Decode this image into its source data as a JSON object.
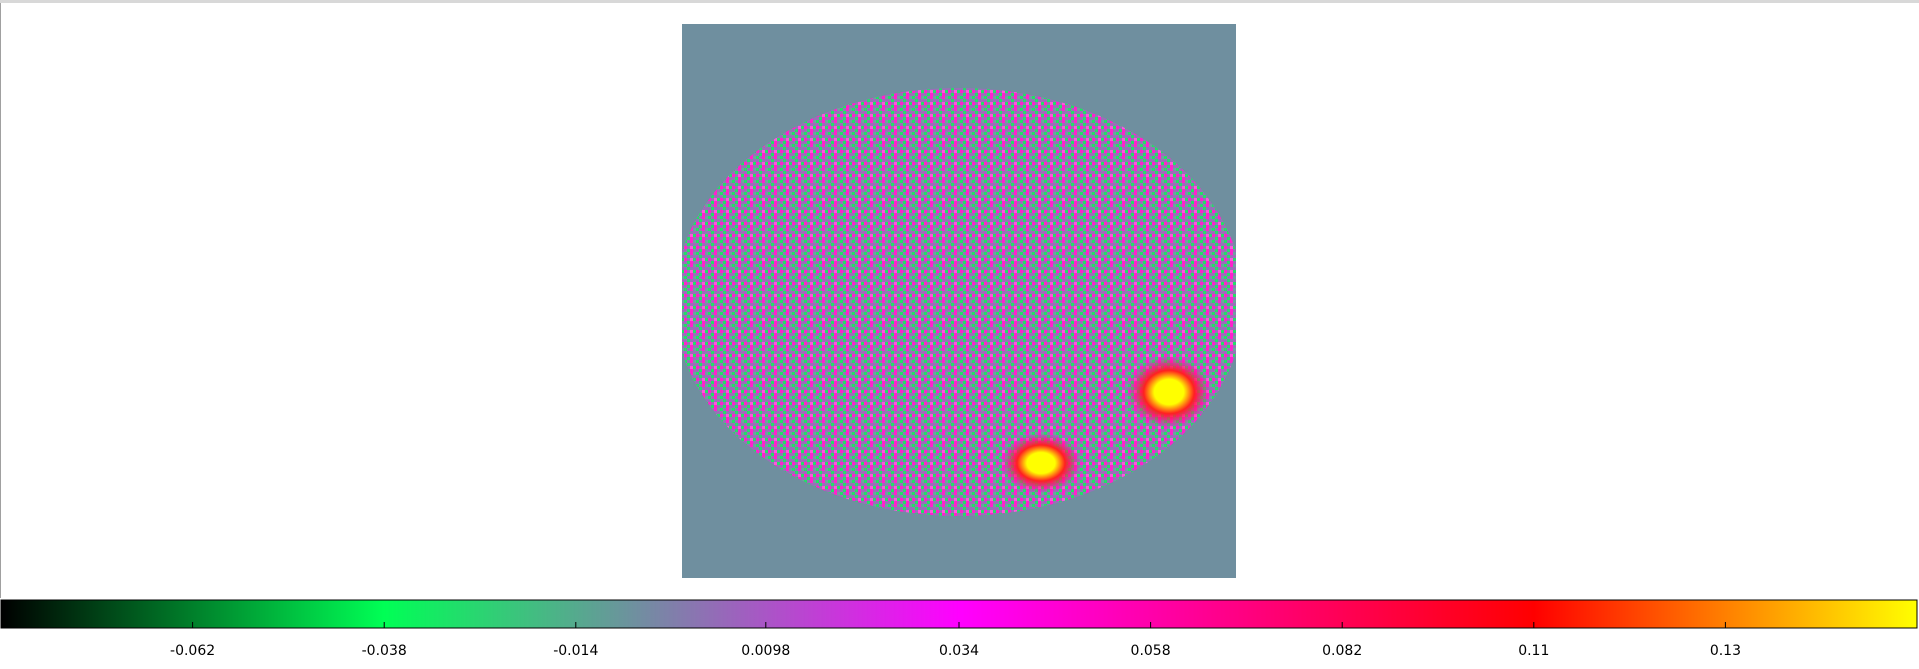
{
  "chart_data": {
    "type": "colorbar",
    "clim": [
      -0.086,
      0.154
    ],
    "xticks": [
      -0.062,
      -0.038,
      -0.014,
      0.0098,
      0.034,
      0.058,
      0.082,
      {
        "value": 0.106,
        "label": "0.11"
      },
      0.13
    ]
  }
}
